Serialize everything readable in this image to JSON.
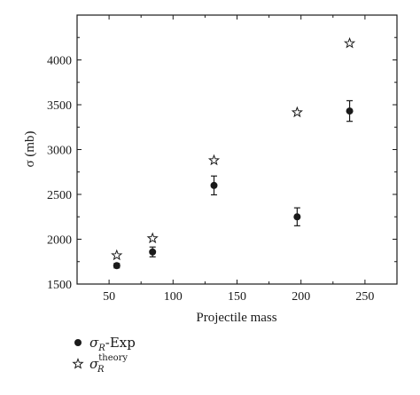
{
  "chart_data": {
    "type": "scatter",
    "title": "",
    "xlabel": "Projectile mass",
    "ylabel": "σ (mb)",
    "xlim": [
      25,
      275
    ],
    "ylim": [
      1500,
      4500
    ],
    "xticks": [
      50,
      100,
      150,
      200,
      250
    ],
    "yticks": [
      1500,
      2000,
      2500,
      3000,
      3500,
      4000
    ],
    "grid": false,
    "legend_position": "below plot, left",
    "series": [
      {
        "name": "σR-Exp",
        "marker": "filled-circle",
        "color": "#1a1a1a",
        "x": [
          56,
          84,
          132,
          197,
          238
        ],
        "y": [
          1705,
          1858,
          2600,
          2250,
          3430
        ],
        "yerr": [
          25,
          55,
          105,
          100,
          115
        ]
      },
      {
        "name": "σR theory",
        "marker": "open-star",
        "color": "#1a1a1a",
        "x": [
          56,
          84,
          132,
          197,
          238
        ],
        "y": [
          1820,
          2010,
          2880,
          3415,
          4185
        ]
      }
    ]
  },
  "legend": {
    "exp": {
      "sym": "σ",
      "sub": "R",
      "suffix": "-Exp"
    },
    "theory": {
      "sym": "σ",
      "sub": "R",
      "sup": "theory"
    }
  }
}
